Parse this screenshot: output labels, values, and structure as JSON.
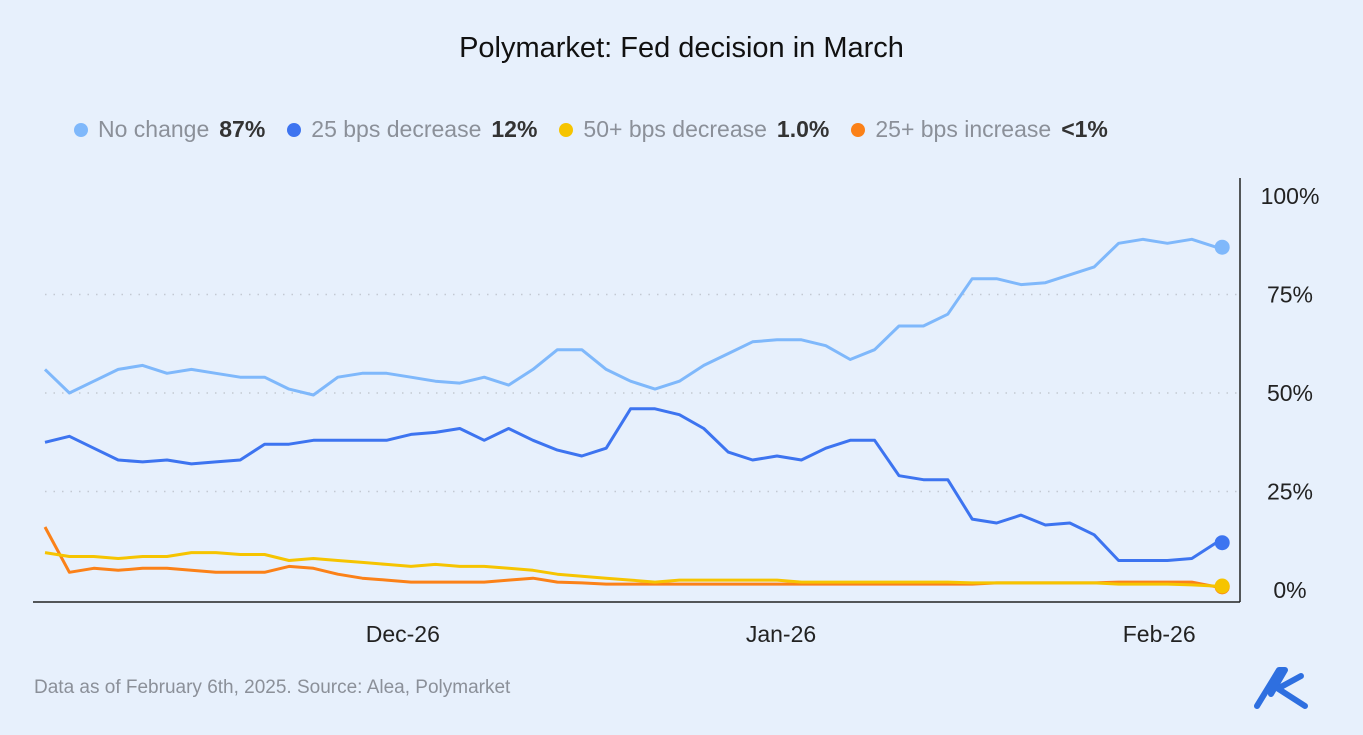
{
  "chart_data": {
    "type": "line",
    "title": "Polymarket: Fed decision in March",
    "x": [
      "2024-11-02",
      "2024-11-04",
      "2024-11-06",
      "2024-11-08",
      "2024-11-10",
      "2024-11-12",
      "2024-11-14",
      "2024-11-16",
      "2024-11-18",
      "2024-11-20",
      "2024-11-22",
      "2024-11-24",
      "2024-11-26",
      "2024-11-28",
      "2024-11-30",
      "2024-12-02",
      "2024-12-04",
      "2024-12-06",
      "2024-12-08",
      "2024-12-10",
      "2024-12-12",
      "2024-12-14",
      "2024-12-16",
      "2024-12-18",
      "2024-12-20",
      "2024-12-22",
      "2024-12-24",
      "2024-12-26",
      "2024-12-28",
      "2024-12-30",
      "2025-01-01",
      "2025-01-03",
      "2025-01-05",
      "2025-01-07",
      "2025-01-09",
      "2025-01-11",
      "2025-01-13",
      "2025-01-15",
      "2025-01-17",
      "2025-01-19",
      "2025-01-21",
      "2025-01-23",
      "2025-01-25",
      "2025-01-27",
      "2025-01-29",
      "2025-01-31",
      "2025-02-02",
      "2025-02-04",
      "2025-02-06"
    ],
    "x_ticks": [
      {
        "date": "2024-12-01",
        "label": "Dec-26"
      },
      {
        "date": "2025-01-01",
        "label": "Jan-26"
      },
      {
        "date": "2025-02-01",
        "label": "Feb-26"
      }
    ],
    "y_ticks": [
      {
        "value": 0,
        "label": "0%"
      },
      {
        "value": 25,
        "label": "25%"
      },
      {
        "value": 50,
        "label": "50%"
      },
      {
        "value": 75,
        "label": "75%"
      },
      {
        "value": 100,
        "label": "100%"
      }
    ],
    "ylim": [
      0,
      100
    ],
    "y_axis_position": "right",
    "grid": "dotted horizontal at 25, 50, 75",
    "legend_position": "top",
    "series": [
      {
        "name": "No change",
        "latest": "87%",
        "color": "#7fb8fb",
        "values": [
          56,
          50,
          53,
          56,
          57,
          55,
          56,
          55,
          54,
          54,
          51,
          49.5,
          54,
          55,
          55,
          54,
          53,
          52.5,
          54,
          52,
          56,
          61,
          61,
          56,
          53,
          51,
          53,
          57,
          60,
          63,
          63.5,
          63.5,
          62,
          58.5,
          61,
          67,
          67,
          70,
          79,
          79,
          77.5,
          78,
          80,
          82,
          88,
          89,
          88,
          89,
          87
        ]
      },
      {
        "name": "25 bps decrease",
        "latest": "12%",
        "color": "#3d74f0",
        "values": [
          37.5,
          39,
          36,
          33,
          32.5,
          33,
          32,
          32.5,
          33,
          37,
          37,
          38,
          38,
          38,
          38,
          39.5,
          40,
          41,
          38,
          41,
          38,
          35.5,
          34,
          36,
          46,
          46,
          44.5,
          41,
          35,
          33,
          34,
          33,
          36,
          38,
          38,
          29,
          28,
          28,
          18,
          17,
          19,
          16.5,
          17,
          14,
          7.5,
          7.5,
          7.5,
          8,
          12
        ]
      },
      {
        "name": "50+ bps decrease",
        "latest": "1.0%",
        "color": "#f6c400",
        "values": [
          9.5,
          8.5,
          8.5,
          8,
          8.5,
          8.5,
          9.5,
          9.5,
          9,
          9,
          7.5,
          8,
          7.5,
          7,
          6.5,
          6,
          6.5,
          6,
          6,
          5.5,
          5,
          4,
          3.5,
          3,
          2.5,
          2,
          2.5,
          2.5,
          2.5,
          2.5,
          2.5,
          2,
          2,
          2,
          2,
          2,
          2,
          2,
          1.8,
          1.8,
          1.8,
          1.8,
          1.8,
          1.8,
          1.5,
          1.5,
          1.5,
          1.3,
          1.0
        ]
      },
      {
        "name": "25+ bps increase",
        "latest": "<1%",
        "color": "#fb8118",
        "values": [
          16,
          4.5,
          5.5,
          5,
          5.5,
          5.5,
          5,
          4.5,
          4.5,
          4.5,
          6,
          5.5,
          4,
          3,
          2.5,
          2,
          2,
          2,
          2,
          2.5,
          3,
          2,
          1.8,
          1.5,
          1.5,
          1.5,
          1.5,
          1.5,
          1.5,
          1.5,
          1.5,
          1.5,
          1.5,
          1.5,
          1.5,
          1.5,
          1.5,
          1.5,
          1.5,
          1.8,
          1.8,
          1.8,
          1.8,
          1.8,
          2,
          2,
          2,
          2,
          0.8
        ]
      }
    ]
  },
  "footer": "Data as of February 6th, 2025. Source: Alea, Polymarket",
  "logo": {
    "text": "Alea",
    "color": "#2e6fe0"
  }
}
